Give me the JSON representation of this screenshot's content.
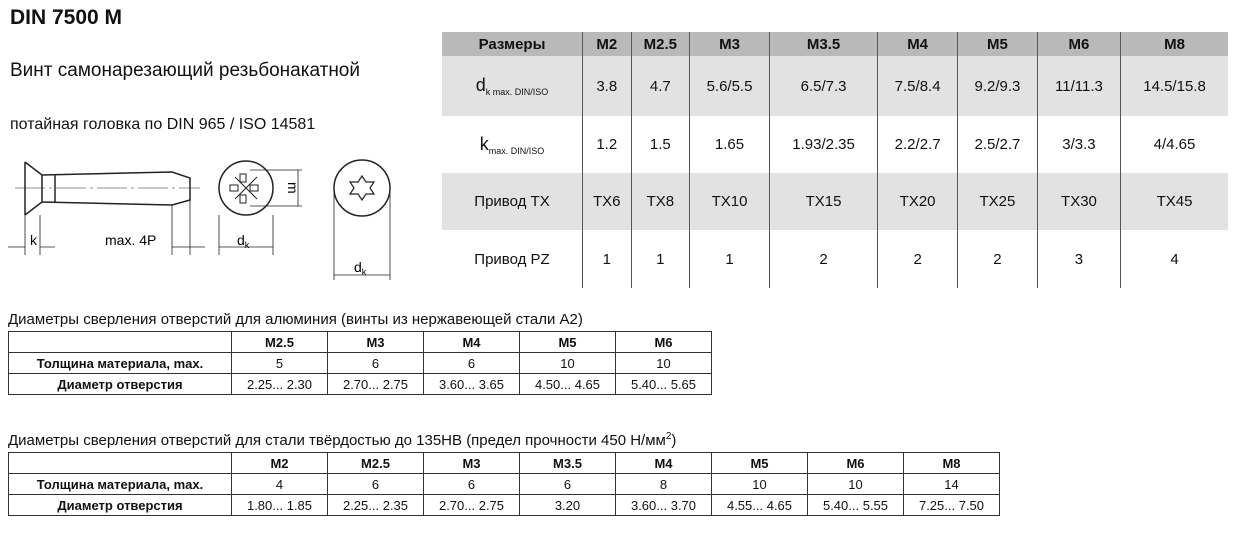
{
  "title": "DIN 7500 M",
  "subtitle": "Винт самонарезающий резьбонакатной",
  "subtitle2": "потайная головка по DIN 965 / ISO 14581",
  "drawing": {
    "k": "k",
    "len": "max. 4P",
    "dk": "d",
    "dk_sub": "k",
    "m": "m"
  },
  "main_table": {
    "header": [
      "Размеры",
      "M2",
      "M2.5",
      "M3",
      "M3.5",
      "M4",
      "M5",
      "M6",
      "M8"
    ],
    "rows": [
      {
        "label": "d",
        "label_sub": "k max. DIN/ISO",
        "values": [
          "3.8",
          "4.7",
          "5.6/5.5",
          "6.5/7.3",
          "7.5/8.4",
          "9.2/9.3",
          "11/11.3",
          "14.5/15.8"
        ]
      },
      {
        "label": "k",
        "label_sub": "max. DIN/ISO",
        "values": [
          "1.2",
          "1.5",
          "1.65",
          "1.93/2.35",
          "2.2/2.7",
          "2.5/2.7",
          "3/3.3",
          "4/4.65"
        ]
      },
      {
        "label": "Привод TX",
        "values": [
          "TX6",
          "TX8",
          "TX10",
          "TX15",
          "TX20",
          "TX25",
          "TX30",
          "TX45"
        ]
      },
      {
        "label": "Привод PZ",
        "values": [
          "1",
          "1",
          "1",
          "2",
          "2",
          "2",
          "3",
          "4"
        ]
      }
    ]
  },
  "alu": {
    "caption": "Диаметры сверления отверстий для алюминия (винты из нержавеющей стали А2)",
    "header": [
      "",
      "M2.5",
      "M3",
      "M4",
      "M5",
      "M6"
    ],
    "rows": [
      [
        "Толщина материала, max.",
        "5",
        "6",
        "6",
        "10",
        "10"
      ],
      [
        "Диаметр отверстия",
        "2.25... 2.30",
        "2.70... 2.75",
        "3.60... 3.65",
        "4.50... 4.65",
        "5.40... 5.65"
      ]
    ]
  },
  "steel": {
    "caption": "Диаметры сверления отверстий для стали твёрдостью до 135HB (предел прочности 450 Н/мм",
    "caption_sup": "2",
    "caption_end": ")",
    "header": [
      "",
      "M2",
      "M2.5",
      "M3",
      "M3.5",
      "M4",
      "M5",
      "M6",
      "M8"
    ],
    "rows": [
      [
        "Толщина материала, max.",
        "4",
        "6",
        "6",
        "6",
        "8",
        "10",
        "10",
        "14"
      ],
      [
        "Диаметр отверстия",
        "1.80... 1.85",
        "2.25... 2.35",
        "2.70... 2.75",
        "3.20",
        "3.60... 3.70",
        "4.55... 4.65",
        "5.40... 5.55",
        "7.25... 7.50"
      ]
    ]
  }
}
